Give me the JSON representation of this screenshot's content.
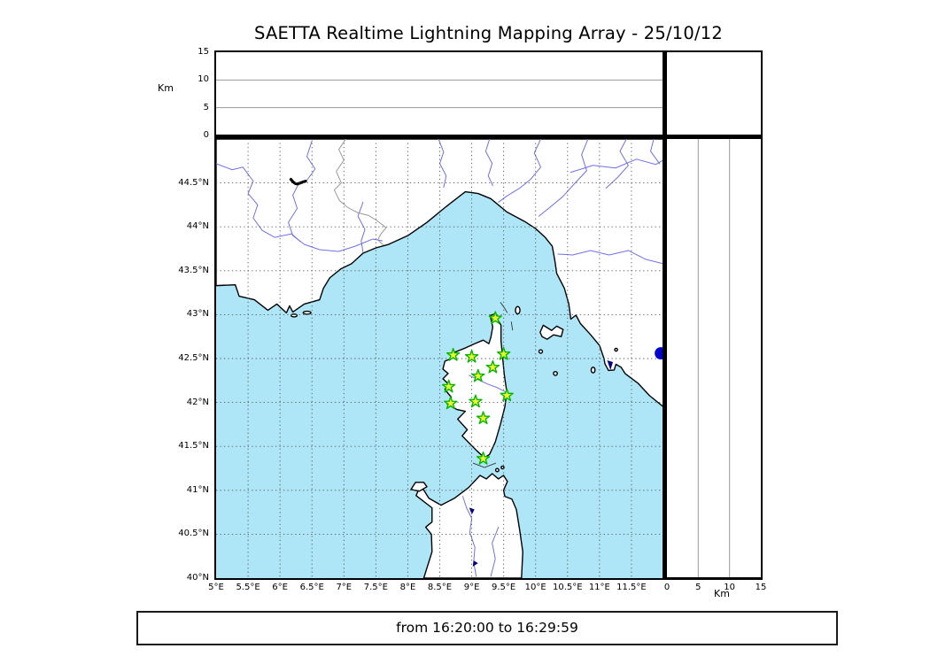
{
  "title": "SAETTA Realtime Lightning Mapping Array - 25/10/12",
  "footer": {
    "text": "from 16:20:00 to 16:29:59"
  },
  "axes": {
    "altitude": {
      "label": "Km",
      "ticks": [
        0,
        5,
        10,
        15
      ],
      "min": 0,
      "max": 15
    },
    "longitude": {
      "tick_values": [
        5,
        5.5,
        6,
        6.5,
        7,
        7.5,
        8,
        8.5,
        9,
        9.5,
        10,
        10.5,
        11,
        11.5
      ],
      "tick_labels": [
        "5°E",
        "5.5°E",
        "6°E",
        "6.5°E",
        "7°E",
        "7.5°E",
        "8°E",
        "8.5°E",
        "9°E",
        "9.5°E",
        "10°E",
        "10.5°E",
        "11°E",
        "11.5°E"
      ],
      "min": 5,
      "max": 12
    },
    "latitude": {
      "tick_values": [
        40,
        40.5,
        41,
        41.5,
        42,
        42.5,
        43,
        43.5,
        44,
        44.5
      ],
      "tick_labels": [
        "40°N",
        "40.5°N",
        "41°N",
        "41.5°N",
        "42°N",
        "42.5°N",
        "43°N",
        "43.5°N",
        "44°N",
        "44.5°N"
      ],
      "min": 40,
      "max": 45
    }
  },
  "stations": [
    {
      "lon": 9.37,
      "lat": 42.96
    },
    {
      "lon": 8.71,
      "lat": 42.54
    },
    {
      "lon": 9.0,
      "lat": 42.52
    },
    {
      "lon": 9.5,
      "lat": 42.55
    },
    {
      "lon": 9.33,
      "lat": 42.4
    },
    {
      "lon": 9.1,
      "lat": 42.3
    },
    {
      "lon": 8.64,
      "lat": 42.18
    },
    {
      "lon": 9.55,
      "lat": 42.08
    },
    {
      "lon": 9.06,
      "lat": 42.01
    },
    {
      "lon": 8.67,
      "lat": 41.99
    },
    {
      "lon": 9.18,
      "lat": 41.82
    },
    {
      "lon": 9.18,
      "lat": 41.36
    }
  ],
  "event_marker": {
    "lon": 11.96,
    "lat": 42.56
  },
  "colors": {
    "sea": "#aee6f7",
    "land": "#ffffff",
    "coast": "#000000",
    "river": "#7070e8",
    "lake": "#000080",
    "country_border": "#999999",
    "grid": "#555555",
    "panel_grid": "#999999",
    "station_fill": "#f2f52e",
    "station_stroke": "#00b800",
    "event_dot": "#0000d0"
  }
}
